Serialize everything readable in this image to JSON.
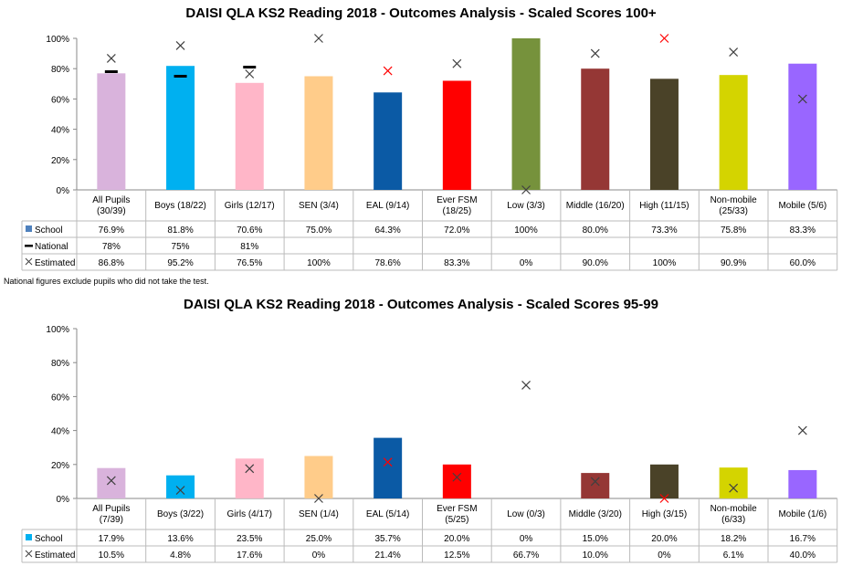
{
  "chart_data": [
    {
      "type": "bar",
      "title": "DAISI QLA KS2 Reading 2018 - Outcomes Analysis - Scaled Scores 100+",
      "ylim": [
        0,
        100
      ],
      "yticks": [
        "0%",
        "20%",
        "40%",
        "60%",
        "80%",
        "100%"
      ],
      "categories": [
        "All Pupils (30/39)",
        "Boys (18/22)",
        "Girls (12/17)",
        "SEN (3/4)",
        "EAL (9/14)",
        "Ever FSM (18/25)",
        "Low (3/3)",
        "Middle (16/20)",
        "High (11/15)",
        "Non-mobile (25/33)",
        "Mobile (5/6)"
      ],
      "bar_colors": [
        "#d9b3dc",
        "#00b0f0",
        "#ffb6c8",
        "#ffcc8a",
        "#0b5aa5",
        "#ff0000",
        "#76923c",
        "#953735",
        "#4a4228",
        "#d4d400",
        "#9966ff"
      ],
      "series": [
        {
          "name": "School",
          "values": [
            76.9,
            81.8,
            70.6,
            75.0,
            64.3,
            72.0,
            100,
            80.0,
            73.3,
            75.8,
            83.3
          ],
          "labels": [
            "76.9%",
            "81.8%",
            "70.6%",
            "75.0%",
            "64.3%",
            "72.0%",
            "100%",
            "80.0%",
            "73.3%",
            "75.8%",
            "83.3%"
          ]
        },
        {
          "name": "National",
          "values": [
            78,
            75,
            81,
            null,
            null,
            null,
            null,
            null,
            null,
            null,
            null
          ],
          "labels": [
            "78%",
            "75%",
            "81%",
            "",
            "",
            "",
            "",
            "",
            "",
            "",
            ""
          ]
        },
        {
          "name": "Estimated",
          "values": [
            86.8,
            95.2,
            76.5,
            100,
            78.6,
            83.3,
            0,
            90.0,
            100,
            90.9,
            60.0
          ],
          "labels": [
            "86.8%",
            "95.2%",
            "76.5%",
            "100%",
            "78.6%",
            "83.3%",
            "0%",
            "90.0%",
            "100%",
            "90.9%",
            "60.0%"
          ],
          "marker_colors": [
            "#404040",
            "#404040",
            "#404040",
            "#404040",
            "#ff0000",
            "#404040",
            "#404040",
            "#404040",
            "#ff0000",
            "#404040",
            "#404040"
          ]
        }
      ],
      "legend_colors": {
        "School": "#4f81bd"
      },
      "footnote": "National figures exclude pupils who did not take the test."
    },
    {
      "type": "bar",
      "title": "DAISI QLA KS2 Reading 2018 - Outcomes Analysis - Scaled Scores 95-99",
      "ylim": [
        0,
        100
      ],
      "yticks": [
        "0%",
        "20%",
        "40%",
        "60%",
        "80%",
        "100%"
      ],
      "categories": [
        "All Pupils (7/39)",
        "Boys (3/22)",
        "Girls (4/17)",
        "SEN (1/4)",
        "EAL (5/14)",
        "Ever FSM (5/25)",
        "Low (0/3)",
        "Middle (3/20)",
        "High (3/15)",
        "Non-mobile (6/33)",
        "Mobile (1/6)"
      ],
      "bar_colors": [
        "#d9b3dc",
        "#00b0f0",
        "#ffb6c8",
        "#ffcc8a",
        "#0b5aa5",
        "#ff0000",
        "#76923c",
        "#953735",
        "#4a4228",
        "#d4d400",
        "#9966ff"
      ],
      "series": [
        {
          "name": "School",
          "values": [
            17.9,
            13.6,
            23.5,
            25.0,
            35.7,
            20.0,
            0,
            15.0,
            20.0,
            18.2,
            16.7
          ],
          "labels": [
            "17.9%",
            "13.6%",
            "23.5%",
            "25.0%",
            "35.7%",
            "20.0%",
            "0%",
            "15.0%",
            "20.0%",
            "18.2%",
            "16.7%"
          ]
        },
        {
          "name": "Estimated",
          "values": [
            10.5,
            4.8,
            17.6,
            0,
            21.4,
            12.5,
            66.7,
            10.0,
            0,
            6.1,
            40.0
          ],
          "labels": [
            "10.5%",
            "4.8%",
            "17.6%",
            "0%",
            "21.4%",
            "12.5%",
            "66.7%",
            "10.0%",
            "0%",
            "6.1%",
            "40.0%"
          ],
          "marker_colors": [
            "#404040",
            "#404040",
            "#404040",
            "#404040",
            "#ff0000",
            "#404040",
            "#404040",
            "#404040",
            "#ff0000",
            "#404040",
            "#404040"
          ]
        }
      ],
      "legend_colors": {
        "School": "#00b0f0"
      }
    }
  ]
}
